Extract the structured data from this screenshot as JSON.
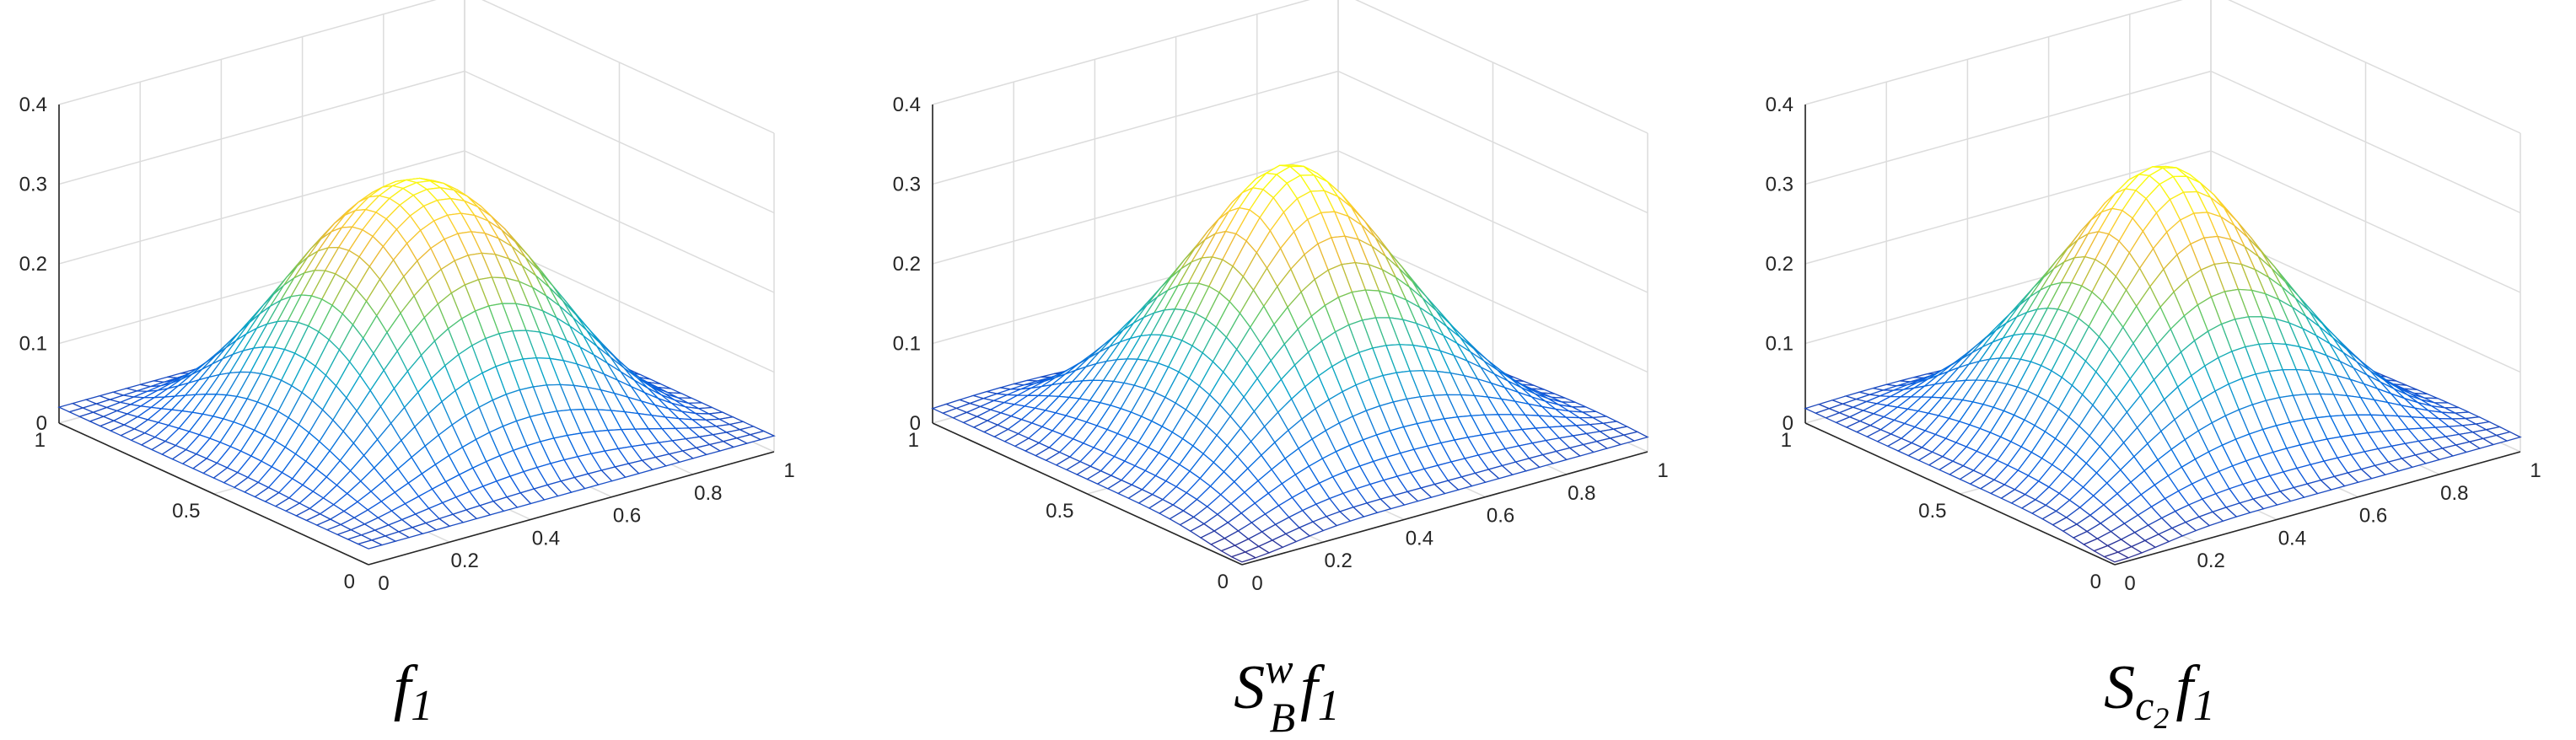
{
  "chart_data": [
    {
      "type": "surface",
      "caption": {
        "main": "f",
        "sub": "1"
      },
      "x_ticks": [
        "0",
        "0.2",
        "0.4",
        "0.6",
        "0.8",
        "1"
      ],
      "y_ticks": [
        "0",
        "0.5",
        "1"
      ],
      "z_ticks": [
        "0",
        "0.1",
        "0.2",
        "0.3",
        "0.4"
      ],
      "xlim": [
        0,
        1
      ],
      "ylim": [
        0,
        1
      ],
      "zlim": [
        0,
        0.4
      ],
      "peak": 0.32,
      "edge_level": 0.02,
      "grid": true,
      "colormap": "parula"
    },
    {
      "type": "surface",
      "caption": {
        "main": "S",
        "sup": "w",
        "sub_b": "B",
        "main2": "f",
        "sub": "1"
      },
      "x_ticks": [
        "0",
        "0.2",
        "0.4",
        "0.6",
        "0.8",
        "1"
      ],
      "y_ticks": [
        "0",
        "0.5",
        "1"
      ],
      "z_ticks": [
        "0",
        "0.1",
        "0.2",
        "0.3",
        "0.4"
      ],
      "xlim": [
        0,
        1
      ],
      "ylim": [
        0,
        1
      ],
      "zlim": [
        0,
        0.4
      ],
      "peak": 0.32,
      "edge_level": 0.02,
      "grid": true,
      "colormap": "parula"
    },
    {
      "type": "surface",
      "caption": {
        "main": "S",
        "sub_c": "c",
        "sub_c2": "2",
        "main2": "f",
        "sub": "1"
      },
      "x_ticks": [
        "0",
        "0.2",
        "0.4",
        "0.6",
        "0.8",
        "1"
      ],
      "y_ticks": [
        "0",
        "0.5",
        "1"
      ],
      "z_ticks": [
        "0",
        "0.1",
        "0.2",
        "0.3",
        "0.4"
      ],
      "xlim": [
        0,
        1
      ],
      "ylim": [
        0,
        1
      ],
      "zlim": [
        0,
        0.4
      ],
      "peak": 0.32,
      "edge_level": 0.02,
      "grid": true,
      "colormap": "parula"
    }
  ]
}
